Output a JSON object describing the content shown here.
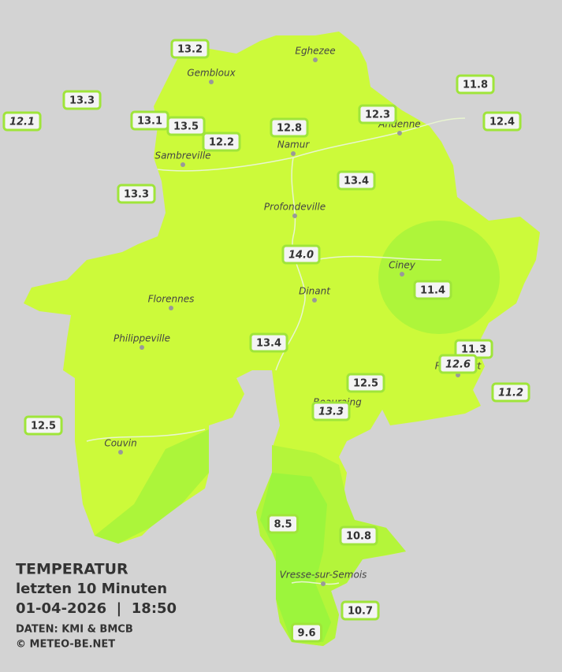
{
  "map": {
    "title": "TEMPERATUR",
    "subtitle": "letzten 10 Minuten",
    "timestamp": "01-04-2026  |  18:50",
    "source": "DATEN: KMI & BMCB",
    "copyright": "© METEO-BE.NET",
    "cities": [
      "Eghezee",
      "Gembloux",
      "Andenne",
      "Namur",
      "Sambreville",
      "Profondeville",
      "Ciney",
      "Dinant",
      "Florennes",
      "Philippeville",
      "Couvin",
      "Vresse-sur-Semois",
      "Rochefort",
      "Beauraing"
    ],
    "stations": [
      {
        "label": "13.2",
        "italic": false
      },
      {
        "label": "13.3",
        "italic": false
      },
      {
        "label": "12.1",
        "italic": true
      },
      {
        "label": "13.1",
        "italic": false
      },
      {
        "label": "13.5",
        "italic": false
      },
      {
        "label": "12.2",
        "italic": false
      },
      {
        "label": "12.8",
        "italic": false
      },
      {
        "label": "12.3",
        "italic": false
      },
      {
        "label": "11.8",
        "italic": false
      },
      {
        "label": "12.4",
        "italic": false
      },
      {
        "label": "13.3",
        "italic": false
      },
      {
        "label": "13.4",
        "italic": false
      },
      {
        "label": "14.0",
        "italic": true
      },
      {
        "label": "11.4",
        "italic": false
      },
      {
        "label": "13.4",
        "italic": false
      },
      {
        "label": "11.3",
        "italic": false
      },
      {
        "label": "12.6",
        "italic": true
      },
      {
        "label": "12.5",
        "italic": false
      },
      {
        "label": "11.2",
        "italic": true
      },
      {
        "label": "13.3",
        "italic": true
      },
      {
        "label": "12.5",
        "italic": false
      },
      {
        "label": "8.5",
        "italic": false
      },
      {
        "label": "10.8",
        "italic": false
      },
      {
        "label": "10.7",
        "italic": false
      },
      {
        "label": "9.6",
        "italic": false
      }
    ]
  }
}
